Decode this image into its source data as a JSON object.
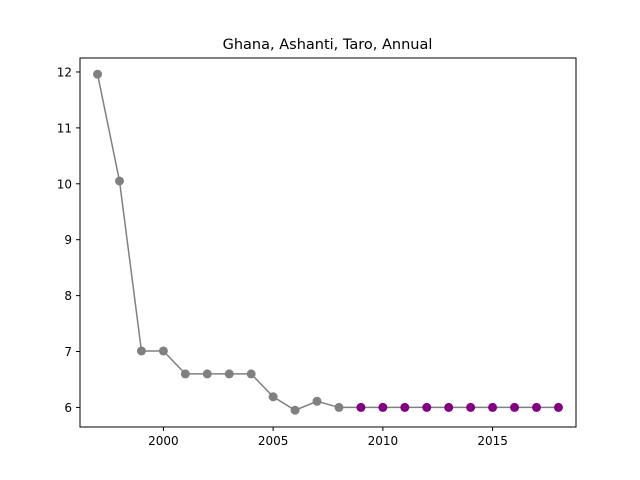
{
  "chart_data": {
    "type": "line",
    "title": "Ghana, Ashanti, Taro, Annual",
    "xlabel": "",
    "ylabel": "",
    "xlim": [
      1996.2,
      2018.8
    ],
    "ylim": [
      5.65,
      12.25
    ],
    "x_ticks": [
      2000,
      2005,
      2010,
      2015
    ],
    "x_tick_labels": [
      "2000",
      "2005",
      "2010",
      "2015"
    ],
    "y_ticks": [
      6,
      7,
      8,
      9,
      10,
      11,
      12
    ],
    "y_tick_labels": [
      "6",
      "7",
      "8",
      "9",
      "10",
      "11",
      "12"
    ],
    "grid": false,
    "line_color": "#808080",
    "series": [
      {
        "color": "#808080",
        "points": [
          {
            "x": 1997,
            "y": 11.96
          },
          {
            "x": 1998,
            "y": 10.05
          },
          {
            "x": 1999,
            "y": 7.01
          },
          {
            "x": 2000,
            "y": 7.01
          },
          {
            "x": 2001,
            "y": 6.6
          },
          {
            "x": 2002,
            "y": 6.6
          },
          {
            "x": 2003,
            "y": 6.6
          },
          {
            "x": 2004,
            "y": 6.6
          },
          {
            "x": 2005,
            "y": 6.19
          },
          {
            "x": 2006,
            "y": 5.95
          },
          {
            "x": 2007,
            "y": 6.11
          },
          {
            "x": 2008,
            "y": 6.0
          }
        ]
      },
      {
        "color": "#800080",
        "points": [
          {
            "x": 2009,
            "y": 6.0
          },
          {
            "x": 2010,
            "y": 6.0
          },
          {
            "x": 2011,
            "y": 6.0
          },
          {
            "x": 2012,
            "y": 6.0
          },
          {
            "x": 2013,
            "y": 6.0
          },
          {
            "x": 2014,
            "y": 6.0
          },
          {
            "x": 2015,
            "y": 6.0
          },
          {
            "x": 2016,
            "y": 6.0
          },
          {
            "x": 2017,
            "y": 6.0
          },
          {
            "x": 2018,
            "y": 6.0
          }
        ]
      }
    ]
  }
}
